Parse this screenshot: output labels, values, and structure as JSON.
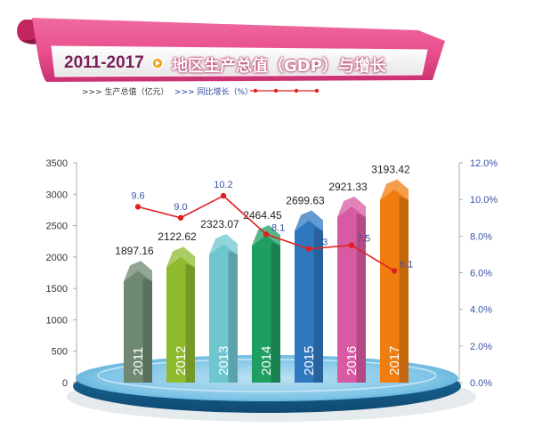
{
  "header": {
    "title_years": "2011-2017",
    "title_main": "地区生产总值（GDP）与增长"
  },
  "legend": {
    "bar_label": ">>> 生产总值（亿元）",
    "line_label": ">>> 同比增长（%）"
  },
  "colors": {
    "banner_pink": "#e84f8c",
    "banner_dark": "#a8164f",
    "title_years": "#7a1f5a",
    "line_red": "#e02020",
    "right_axis_blue": "#3b52a8",
    "platform_blue": "#2e8fc4"
  },
  "chart_data": {
    "type": "bar",
    "categories": [
      "2011",
      "2012",
      "2013",
      "2014",
      "2015",
      "2016",
      "2017"
    ],
    "series": [
      {
        "name": "生产总值（亿元）",
        "type": "bar",
        "axis": "left",
        "values": [
          1897.16,
          2122.62,
          2323.07,
          2464.45,
          2699.63,
          2921.33,
          3193.42
        ]
      },
      {
        "name": "同比增长（%）",
        "type": "line",
        "axis": "right",
        "values": [
          9.6,
          9.0,
          10.2,
          8.1,
          7.3,
          7.5,
          6.1
        ]
      }
    ],
    "bar_labels": [
      "1897.16",
      "2122.62",
      "2323.07",
      "2464.45",
      "2699.63",
      "2921.33",
      "3193.42"
    ],
    "line_labels": [
      "9.6",
      "9.0",
      "10.2",
      "8.1",
      "7.3",
      "7.5",
      "6.1"
    ],
    "left_axis": {
      "ylim": [
        0,
        3500
      ],
      "ticks": [
        "0",
        "500",
        "1000",
        "1500",
        "2000",
        "2500",
        "3000",
        "3500"
      ]
    },
    "right_axis": {
      "ylim": [
        0,
        12
      ],
      "ticks": [
        "0.0%",
        "2.0%",
        "4.0%",
        "6.0%",
        "8.0%",
        "10.0%",
        "12.0%"
      ]
    },
    "bar_colors": [
      "#6e8872",
      "#8fbb2f",
      "#6fc6cf",
      "#1f9e62",
      "#2f78bf",
      "#d85aa2",
      "#f07d10"
    ],
    "grid": false,
    "legend_position": "top-left"
  }
}
